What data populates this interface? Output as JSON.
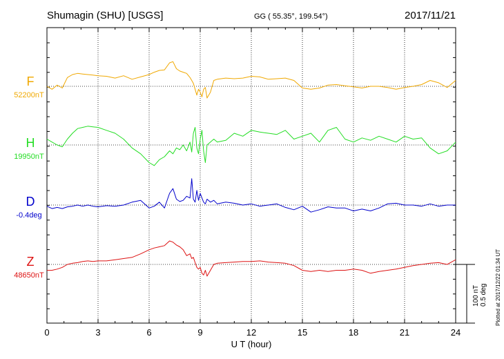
{
  "header": {
    "station": "Shumagin (SHU)  [USGS]",
    "coords": "GG ( 55.35°, 199.54°)",
    "date": "2017/11/21"
  },
  "footer": {
    "plotted": "Plotted at 2017/12/22 01:34 UT"
  },
  "scale": {
    "label_nt": "100 nT",
    "label_deg": "0.5 deg"
  },
  "colors": {
    "F": "#f0a800",
    "H": "#22dd22",
    "D": "#0000cc",
    "Z": "#dd1111",
    "frame": "#000000",
    "grid": "#000000"
  },
  "chart_data": {
    "type": "line",
    "xlabel": "U T (hour)",
    "xlim": [
      0,
      24
    ],
    "xticks": [
      "0",
      "3",
      "6",
      "9",
      "12",
      "15",
      "18",
      "21",
      "24"
    ],
    "grid": true,
    "panel_scale_nT": 100,
    "series": [
      {
        "name": "F",
        "baseline_label": "52200nT",
        "unit": "nT",
        "x": [
          0,
          0.3,
          0.6,
          0.9,
          1.2,
          1.5,
          1.8,
          2.1,
          2.4,
          2.7,
          3.0,
          3.5,
          4.0,
          4.5,
          5.0,
          5.5,
          6.0,
          6.3,
          6.6,
          6.9,
          7.2,
          7.4,
          7.6,
          7.8,
          8.0,
          8.2,
          8.4,
          8.5,
          8.6,
          8.7,
          8.8,
          8.9,
          9.0,
          9.1,
          9.2,
          9.3,
          9.4,
          9.6,
          9.8,
          10.0,
          10.5,
          11.0,
          11.5,
          12.0,
          12.5,
          13.0,
          13.5,
          14.0,
          14.5,
          15.0,
          15.5,
          16.0,
          16.5,
          17.0,
          17.5,
          18.0,
          18.5,
          19.0,
          19.5,
          20.0,
          20.5,
          21.0,
          21.5,
          22.0,
          22.5,
          23.0,
          23.5,
          24.0
        ],
        "values": [
          0,
          -5,
          2,
          -3,
          15,
          20,
          22,
          21,
          20,
          19,
          18,
          17,
          14,
          18,
          12,
          16,
          20,
          24,
          27,
          28,
          40,
          42,
          30,
          26,
          24,
          22,
          15,
          10,
          5,
          -5,
          -15,
          -5,
          -10,
          -18,
          -5,
          -2,
          -20,
          -10,
          10,
          12,
          14,
          13,
          14,
          17,
          16,
          12,
          13,
          14,
          10,
          -3,
          -5,
          -3,
          2,
          3,
          1,
          -1,
          -3,
          0,
          0,
          -2,
          -5,
          -2,
          0,
          3,
          10,
          6,
          -2,
          10
        ]
      },
      {
        "name": "H",
        "baseline_label": "19950nT",
        "unit": "nT",
        "x": [
          0,
          0.3,
          0.6,
          0.9,
          1.2,
          1.5,
          1.8,
          2.1,
          2.4,
          2.7,
          3.0,
          3.5,
          4.0,
          4.5,
          5.0,
          5.5,
          6.0,
          6.3,
          6.6,
          6.9,
          7.2,
          7.4,
          7.6,
          7.8,
          8.0,
          8.2,
          8.4,
          8.5,
          8.6,
          8.7,
          8.8,
          8.9,
          9.0,
          9.1,
          9.2,
          9.3,
          9.4,
          9.6,
          9.8,
          10.0,
          10.5,
          11.0,
          11.5,
          12.0,
          12.5,
          13.0,
          13.5,
          14.0,
          14.5,
          15.0,
          15.5,
          16.0,
          16.5,
          17.0,
          17.5,
          18.0,
          18.5,
          19.0,
          19.5,
          20.0,
          20.5,
          21.0,
          21.5,
          22.0,
          22.5,
          23.0,
          23.5,
          24.0
        ],
        "values": [
          10,
          5,
          0,
          -3,
          10,
          20,
          28,
          30,
          32,
          31,
          30,
          25,
          20,
          10,
          -5,
          -15,
          -30,
          -35,
          -25,
          -20,
          -10,
          -15,
          -5,
          -8,
          0,
          -10,
          5,
          -12,
          20,
          30,
          -5,
          -15,
          10,
          25,
          -10,
          -30,
          0,
          5,
          10,
          5,
          8,
          20,
          15,
          25,
          22,
          20,
          18,
          25,
          10,
          15,
          20,
          5,
          25,
          30,
          10,
          5,
          12,
          8,
          15,
          10,
          5,
          15,
          10,
          12,
          -5,
          -15,
          -10,
          5
        ]
      },
      {
        "name": "D",
        "baseline_label": "-0.4deg",
        "unit": "deg",
        "x": [
          0,
          0.3,
          0.6,
          0.9,
          1.2,
          1.5,
          1.8,
          2.1,
          2.4,
          2.7,
          3.0,
          3.5,
          4.0,
          4.5,
          5.0,
          5.5,
          6.0,
          6.3,
          6.6,
          6.9,
          7.2,
          7.4,
          7.6,
          7.8,
          8.0,
          8.2,
          8.4,
          8.5,
          8.6,
          8.7,
          8.8,
          8.9,
          9.0,
          9.1,
          9.2,
          9.3,
          9.4,
          9.6,
          9.8,
          10.0,
          10.5,
          11.0,
          11.5,
          12.0,
          12.5,
          13.0,
          13.5,
          14.0,
          14.5,
          15.0,
          15.5,
          16.0,
          16.5,
          17.0,
          17.5,
          18.0,
          18.5,
          19.0,
          19.5,
          20.0,
          20.5,
          21.0,
          21.5,
          22.0,
          22.5,
          23.0,
          23.5,
          24.0
        ],
        "values": [
          -2,
          -6,
          -4,
          -6,
          -3,
          -2,
          0,
          -2,
          0,
          -2,
          -3,
          -1,
          -2,
          0,
          5,
          8,
          -5,
          -2,
          5,
          -5,
          20,
          28,
          10,
          6,
          8,
          15,
          12,
          45,
          10,
          5,
          25,
          8,
          20,
          12,
          5,
          2,
          10,
          5,
          8,
          2,
          5,
          3,
          0,
          2,
          -2,
          0,
          2,
          -4,
          -8,
          -2,
          -12,
          -8,
          -3,
          -5,
          -5,
          -10,
          -7,
          -10,
          -5,
          2,
          3,
          0,
          0,
          -2,
          2,
          -2,
          0,
          0
        ]
      },
      {
        "name": "Z",
        "baseline_label": "48650nT",
        "unit": "nT",
        "x": [
          0,
          0.3,
          0.6,
          0.9,
          1.2,
          1.5,
          1.8,
          2.1,
          2.4,
          2.7,
          3.0,
          3.5,
          4.0,
          4.5,
          5.0,
          5.5,
          6.0,
          6.3,
          6.6,
          6.9,
          7.2,
          7.4,
          7.6,
          7.8,
          8.0,
          8.2,
          8.4,
          8.5,
          8.6,
          8.7,
          8.8,
          8.9,
          9.0,
          9.1,
          9.2,
          9.3,
          9.4,
          9.6,
          9.8,
          10.0,
          10.5,
          11.0,
          11.5,
          12.0,
          12.5,
          13.0,
          13.5,
          14.0,
          14.5,
          15.0,
          15.5,
          16.0,
          16.5,
          17.0,
          17.5,
          18.0,
          18.5,
          19.0,
          19.5,
          20.0,
          20.5,
          21.0,
          21.5,
          22.0,
          22.5,
          23.0,
          23.5,
          24.0
        ],
        "values": [
          -10,
          -10,
          -8,
          -5,
          0,
          2,
          3,
          5,
          6,
          5,
          6,
          6,
          8,
          10,
          12,
          18,
          25,
          28,
          30,
          32,
          40,
          38,
          33,
          30,
          25,
          15,
          18,
          10,
          12,
          3,
          -5,
          -8,
          -5,
          -15,
          -18,
          -10,
          -20,
          -10,
          0,
          2,
          3,
          4,
          5,
          5,
          6,
          4,
          3,
          2,
          -2,
          -10,
          -12,
          -10,
          -12,
          -10,
          -10,
          -8,
          -10,
          -15,
          -12,
          -10,
          -8,
          -5,
          -2,
          0,
          2,
          3,
          0,
          8
        ]
      }
    ]
  }
}
